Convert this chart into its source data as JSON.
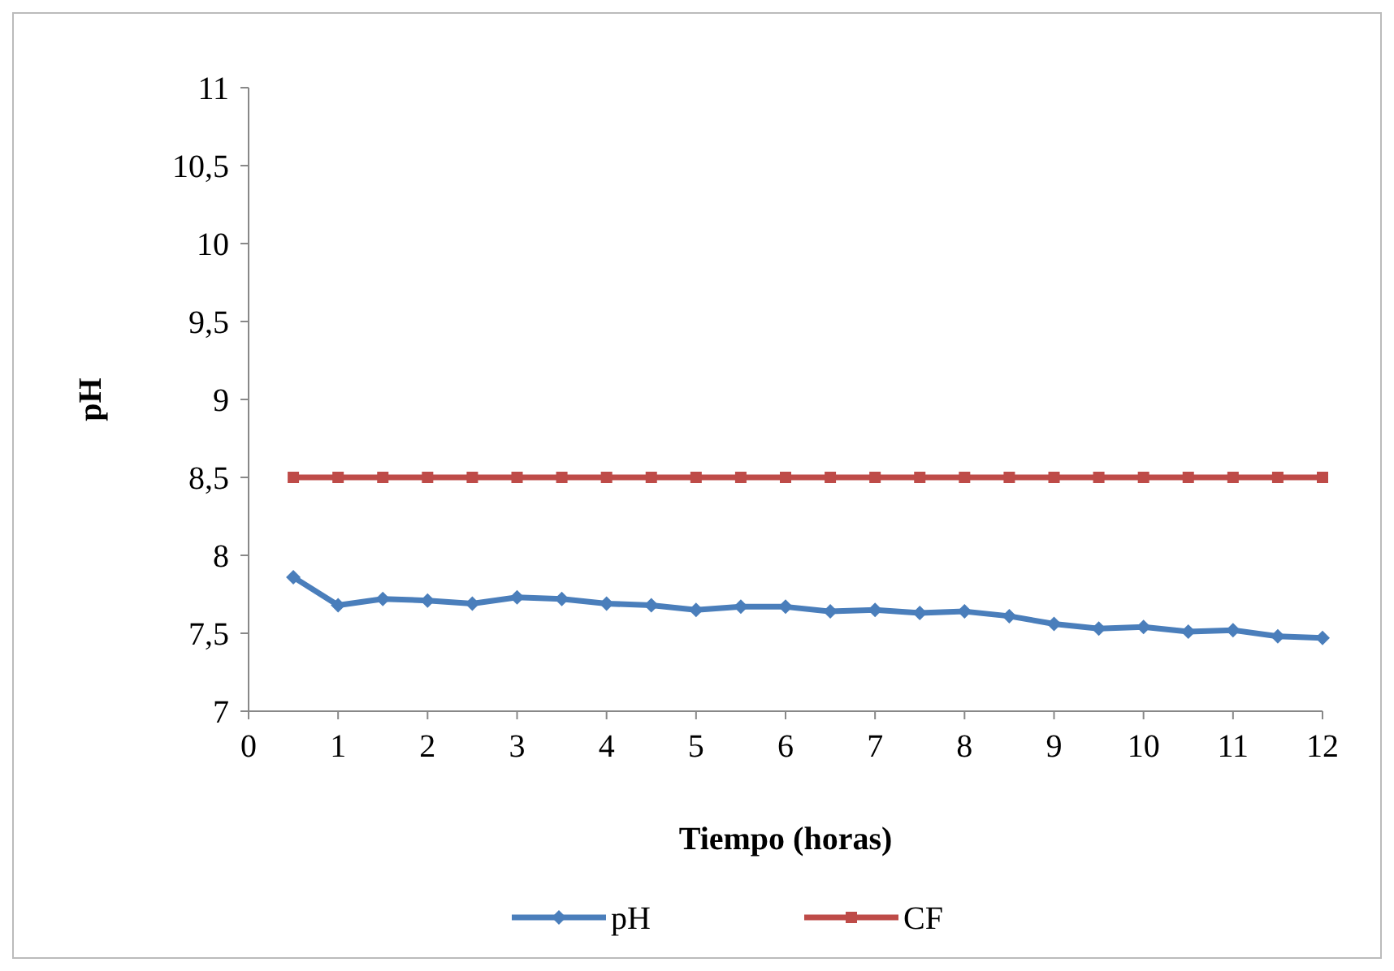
{
  "chart_data": {
    "type": "line",
    "xlabel": "Tiempo (horas)",
    "ylabel": "pH",
    "x": [
      0.5,
      1,
      1.5,
      2,
      2.5,
      3,
      3.5,
      4,
      4.5,
      5,
      5.5,
      6,
      6.5,
      7,
      7.5,
      8,
      8.5,
      9,
      9.5,
      10,
      10.5,
      11,
      11.5,
      12
    ],
    "series": [
      {
        "name": "pH",
        "color": "#4a7ebb",
        "marker": "diamond",
        "values": [
          7.86,
          7.68,
          7.72,
          7.71,
          7.69,
          7.73,
          7.72,
          7.69,
          7.68,
          7.65,
          7.67,
          7.67,
          7.64,
          7.65,
          7.63,
          7.64,
          7.61,
          7.56,
          7.53,
          7.54,
          7.51,
          7.52,
          7.48,
          7.47
        ]
      },
      {
        "name": "CF",
        "color": "#be4b48",
        "marker": "square",
        "values": [
          8.5,
          8.5,
          8.5,
          8.5,
          8.5,
          8.5,
          8.5,
          8.5,
          8.5,
          8.5,
          8.5,
          8.5,
          8.5,
          8.5,
          8.5,
          8.5,
          8.5,
          8.5,
          8.5,
          8.5,
          8.5,
          8.5,
          8.5,
          8.5
        ]
      }
    ],
    "xlim": [
      0,
      12
    ],
    "xticks": [
      0,
      1,
      2,
      3,
      4,
      5,
      6,
      7,
      8,
      9,
      10,
      11,
      12
    ],
    "ylim": [
      7,
      11
    ],
    "yticks": [
      {
        "value": 7,
        "label": "7"
      },
      {
        "value": 7.5,
        "label": "7,5"
      },
      {
        "value": 8,
        "label": "8"
      },
      {
        "value": 8.5,
        "label": "8,5"
      },
      {
        "value": 9,
        "label": "9"
      },
      {
        "value": 9.5,
        "label": "9,5"
      },
      {
        "value": 10,
        "label": "10"
      },
      {
        "value": 10.5,
        "label": "10,5"
      },
      {
        "value": 11,
        "label": "11"
      }
    ],
    "grid": false,
    "legend": "bottom"
  }
}
